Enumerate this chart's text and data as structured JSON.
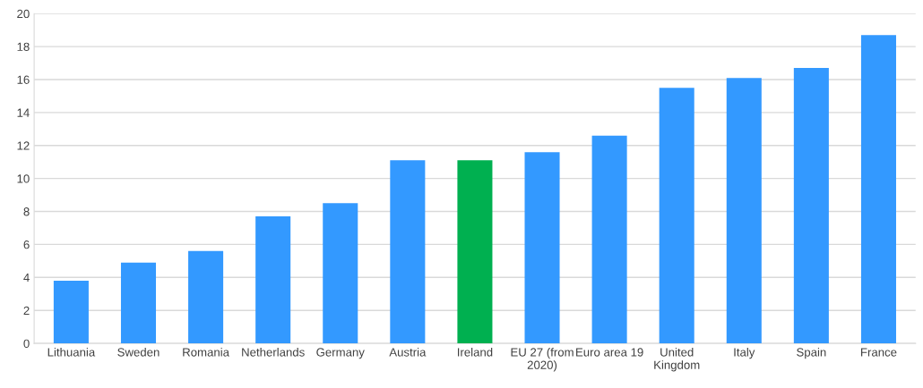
{
  "chart_data": {
    "type": "bar",
    "categories": [
      "Lithuania",
      "Sweden",
      "Romania",
      "Netherlands",
      "Germany",
      "Austria",
      "Ireland",
      "EU 27 (from\n2020)",
      "Euro area 19",
      "United\nKingdom",
      "Italy",
      "Spain",
      "France"
    ],
    "values": [
      3.8,
      4.9,
      5.6,
      7.7,
      8.5,
      11.1,
      11.1,
      11.6,
      12.6,
      15.5,
      16.1,
      16.7,
      18.7
    ],
    "colors": [
      "#3399ff",
      "#3399ff",
      "#3399ff",
      "#3399ff",
      "#3399ff",
      "#3399ff",
      "#00b050",
      "#3399ff",
      "#3399ff",
      "#3399ff",
      "#3399ff",
      "#3399ff",
      "#3399ff"
    ],
    "ylim": [
      0,
      20
    ],
    "yticks": [
      0,
      2,
      4,
      6,
      8,
      10,
      12,
      14,
      16,
      18,
      20
    ],
    "grid": "y"
  }
}
